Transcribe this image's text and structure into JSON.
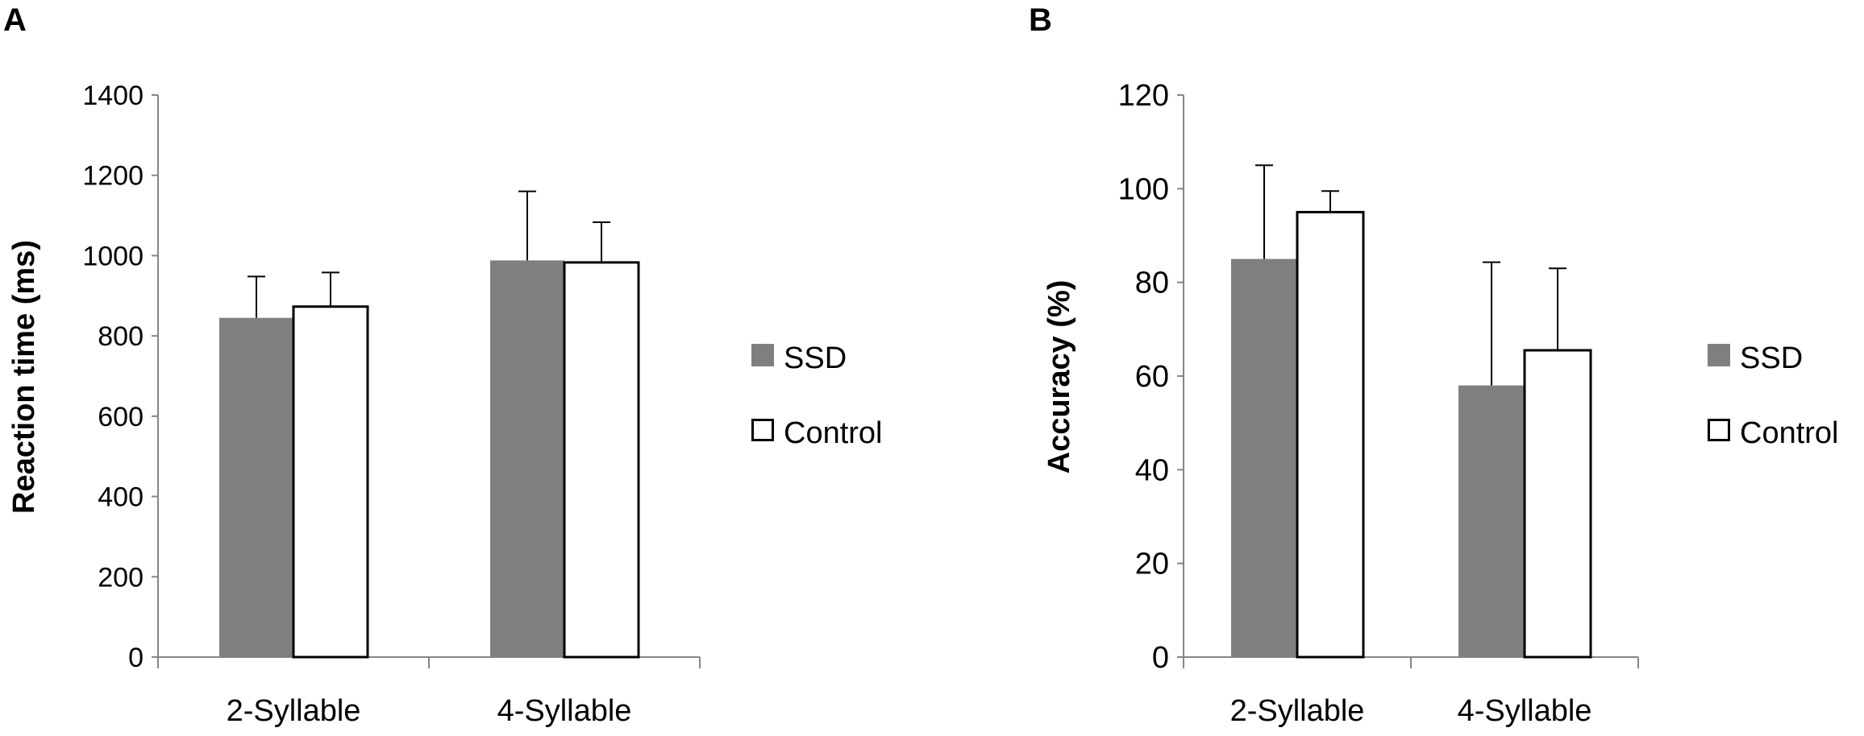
{
  "chart_data": [
    {
      "panel": "A",
      "type": "bar",
      "title": "",
      "xlabel": "",
      "ylabel": "Reaction time (ms)",
      "categories": [
        "2-Syllable",
        "4-Syllable"
      ],
      "ylim": [
        0,
        1400
      ],
      "yticks": [
        "0",
        "200",
        "400",
        "600",
        "800",
        "1000",
        "1200",
        "1400"
      ],
      "series": [
        {
          "name": "SSD",
          "values": [
            845,
            988
          ],
          "errors": [
            103,
            172
          ]
        },
        {
          "name": "Control",
          "values": [
            873,
            983
          ],
          "errors": [
            85,
            100
          ]
        }
      ],
      "legend": [
        "SSD",
        "Control"
      ],
      "legend_position": "right"
    },
    {
      "panel": "B",
      "type": "bar",
      "title": "",
      "xlabel": "",
      "ylabel": "Accuracy (%)",
      "categories": [
        "2-Syllable",
        "4-Syllable"
      ],
      "ylim": [
        0,
        120
      ],
      "yticks": [
        "0",
        "20",
        "40",
        "60",
        "80",
        "100",
        "120"
      ],
      "series": [
        {
          "name": "SSD",
          "values": [
            85,
            58
          ],
          "errors": [
            20,
            26.3
          ]
        },
        {
          "name": "Control",
          "values": [
            95,
            65.5
          ],
          "errors": [
            4.5,
            17.5
          ]
        }
      ],
      "legend": [
        "SSD",
        "Control"
      ],
      "legend_position": "right"
    }
  ],
  "colors": {
    "ssd": "#7f7f7f",
    "control": "#ffffff",
    "axis": "#868686",
    "edge": "#000000"
  }
}
